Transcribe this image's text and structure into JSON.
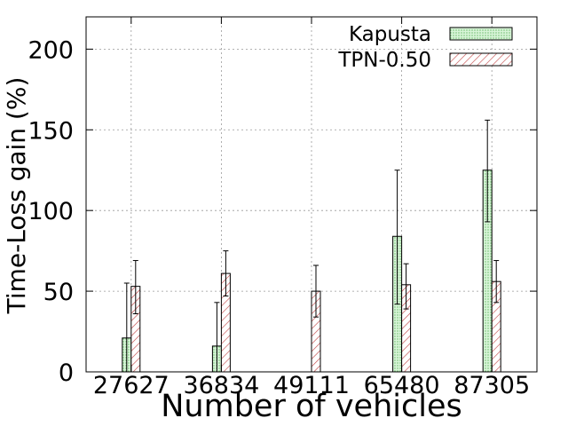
{
  "chart_data": {
    "type": "bar",
    "xlabel": "Number of vehicles",
    "ylabel": "Time-Loss gain (%)",
    "categories": [
      "27627",
      "36834",
      "49111",
      "65480",
      "87305"
    ],
    "ylim": [
      0,
      220
    ],
    "yticks": [
      0,
      50,
      100,
      150,
      200
    ],
    "grid": true,
    "legend_position": "top-right",
    "series": [
      {
        "name": "Kapusta",
        "values": [
          21,
          16,
          null,
          84,
          125
        ],
        "error_low": [
          0,
          0,
          null,
          42,
          93
        ],
        "error_high": [
          55,
          43,
          null,
          125,
          156
        ],
        "color": "#ccffcc",
        "pattern": "dots"
      },
      {
        "name": "TPN-0.50",
        "values": [
          53,
          61,
          50,
          54,
          56
        ],
        "error_low": [
          36,
          47,
          34,
          39,
          43
        ],
        "error_high": [
          69,
          75,
          66,
          67,
          69
        ],
        "color": "#ffdddd",
        "pattern": "hatch"
      }
    ]
  }
}
